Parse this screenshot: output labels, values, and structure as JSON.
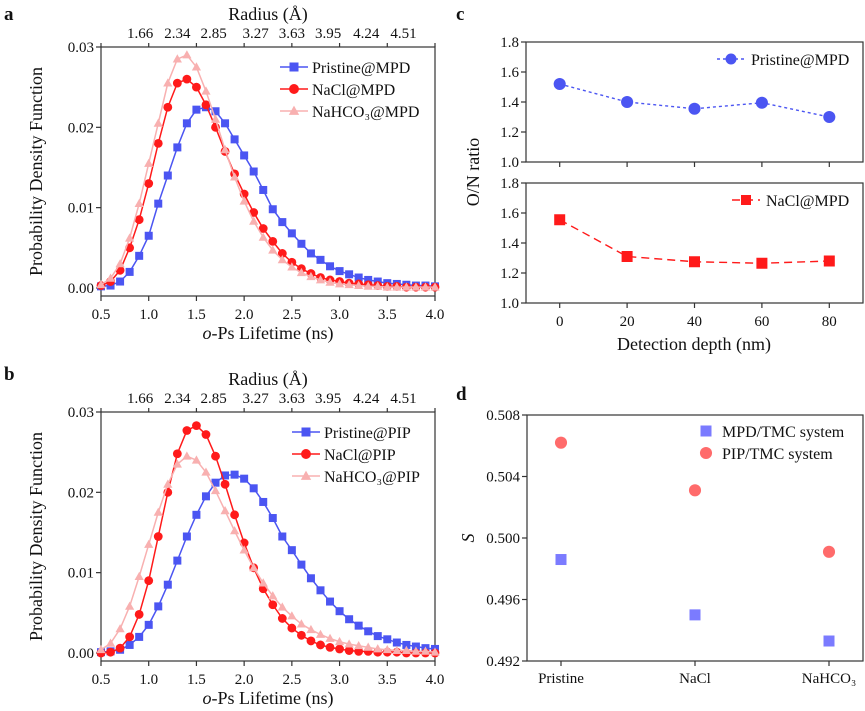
{
  "panel_letters": {
    "a": "a",
    "b": "b",
    "c": "c",
    "d": "d"
  },
  "chart_data": [
    {
      "panel": "a",
      "type": "line",
      "xlabel": "o-Ps Lifetime (ns)",
      "ylabel": "Probability Density Function",
      "xlim": [
        0.5,
        4.0
      ],
      "ylim": [
        -0.001,
        0.03
      ],
      "xticks": [
        "0.5",
        "1.0",
        "1.5",
        "2.0",
        "2.5",
        "3.0",
        "3.5",
        "4.0"
      ],
      "yticks": [
        "0.00",
        "0.01",
        "0.02",
        "0.03"
      ],
      "top_axis": {
        "label": "Radius (Å)",
        "ticks": [
          {
            "label": "1.66",
            "at": 0.91
          },
          {
            "label": "2.34",
            "at": 1.3
          },
          {
            "label": "2.85",
            "at": 1.68
          },
          {
            "label": "3.27",
            "at": 2.12
          },
          {
            "label": "3.63",
            "at": 2.5
          },
          {
            "label": "3.95",
            "at": 2.88
          },
          {
            "label": "4.24",
            "at": 3.28
          },
          {
            "label": "4.51",
            "at": 3.67
          }
        ]
      },
      "legend_position": "top-right",
      "x": [
        0.5,
        0.6,
        0.7,
        0.8,
        0.9,
        1.0,
        1.1,
        1.2,
        1.3,
        1.4,
        1.5,
        1.6,
        1.7,
        1.8,
        1.9,
        2.0,
        2.1,
        2.2,
        2.3,
        2.4,
        2.5,
        2.6,
        2.7,
        2.8,
        2.9,
        3.0,
        3.1,
        3.2,
        3.3,
        3.4,
        3.5,
        3.6,
        3.7,
        3.8,
        3.9,
        4.0
      ],
      "series": [
        {
          "name": "Pristine@MPD",
          "color": "#4b55f2",
          "marker": "square",
          "values": [
            0.0002,
            0.0003,
            0.0008,
            0.002,
            0.004,
            0.0065,
            0.0105,
            0.014,
            0.0175,
            0.0205,
            0.0222,
            0.0225,
            0.022,
            0.0205,
            0.0185,
            0.0165,
            0.0145,
            0.0122,
            0.0098,
            0.0082,
            0.0068,
            0.0055,
            0.0043,
            0.0035,
            0.0027,
            0.0021,
            0.0017,
            0.0013,
            0.001,
            0.0008,
            0.0006,
            0.0005,
            0.0004,
            0.0003,
            0.0003,
            0.0002
          ]
        },
        {
          "name": "NaCl@MPD",
          "color": "#ff1a1a",
          "marker": "circle",
          "values": [
            0.0003,
            0.0008,
            0.0022,
            0.005,
            0.0085,
            0.013,
            0.018,
            0.0225,
            0.0255,
            0.026,
            0.025,
            0.0228,
            0.02,
            0.017,
            0.0142,
            0.0117,
            0.0094,
            0.0074,
            0.0058,
            0.0043,
            0.0032,
            0.0024,
            0.0018,
            0.0013,
            0.001,
            0.0008,
            0.0006,
            0.0005,
            0.0004,
            0.0003,
            0.0002,
            0.0002,
            0.0001,
            0.0001,
            0.0001,
            0.0001
          ]
        },
        {
          "name": "NaHCO₃@MPD",
          "color": "#f8b0b0",
          "marker": "triangle",
          "values": [
            0.0004,
            0.0012,
            0.003,
            0.0062,
            0.0105,
            0.0155,
            0.0205,
            0.0255,
            0.0285,
            0.029,
            0.0275,
            0.0245,
            0.021,
            0.0172,
            0.0138,
            0.0108,
            0.0083,
            0.0063,
            0.0047,
            0.0035,
            0.0026,
            0.0019,
            0.0014,
            0.001,
            0.0007,
            0.0005,
            0.0004,
            0.0003,
            0.0002,
            0.0002,
            0.0001,
            0.0001,
            0.0001,
            0.0001,
            0.0001,
            0.0001
          ]
        }
      ]
    },
    {
      "panel": "b",
      "type": "line",
      "xlabel": "o-Ps Lifetime (ns)",
      "ylabel": "Probability Density Function",
      "xlim": [
        0.5,
        4.0
      ],
      "ylim": [
        -0.001,
        0.03
      ],
      "xticks": [
        "0.5",
        "1.0",
        "1.5",
        "2.0",
        "2.5",
        "3.0",
        "3.5",
        "4.0"
      ],
      "yticks": [
        "0.00",
        "0.01",
        "0.02",
        "0.03"
      ],
      "top_axis": {
        "label": "Radius (Å)",
        "ticks": [
          {
            "label": "1.66",
            "at": 0.91
          },
          {
            "label": "2.34",
            "at": 1.3
          },
          {
            "label": "2.85",
            "at": 1.68
          },
          {
            "label": "3.27",
            "at": 2.12
          },
          {
            "label": "3.63",
            "at": 2.5
          },
          {
            "label": "3.95",
            "at": 2.88
          },
          {
            "label": "4.24",
            "at": 3.28
          },
          {
            "label": "4.51",
            "at": 3.67
          }
        ]
      },
      "legend_position": "top-right",
      "x": [
        0.5,
        0.6,
        0.7,
        0.8,
        0.9,
        1.0,
        1.1,
        1.2,
        1.3,
        1.4,
        1.5,
        1.6,
        1.7,
        1.8,
        1.9,
        2.0,
        2.1,
        2.2,
        2.3,
        2.4,
        2.5,
        2.6,
        2.7,
        2.8,
        2.9,
        3.0,
        3.1,
        3.2,
        3.3,
        3.4,
        3.5,
        3.6,
        3.7,
        3.8,
        3.9,
        4.0
      ],
      "series": [
        {
          "name": "Pristine@PIP",
          "color": "#4b55f2",
          "marker": "square",
          "values": [
            0.0001,
            0.0002,
            0.0004,
            0.001,
            0.002,
            0.0035,
            0.0058,
            0.0085,
            0.0115,
            0.0145,
            0.0172,
            0.0195,
            0.0212,
            0.0221,
            0.0222,
            0.0217,
            0.0205,
            0.0188,
            0.0168,
            0.0145,
            0.0128,
            0.011,
            0.0093,
            0.0078,
            0.0064,
            0.0052,
            0.0042,
            0.0034,
            0.0027,
            0.0021,
            0.0017,
            0.0013,
            0.001,
            0.0008,
            0.0006,
            0.0005
          ]
        },
        {
          "name": "NaCl@PIP",
          "color": "#ff1a1a",
          "marker": "circle",
          "values": [
            0.0,
            0.0001,
            0.0006,
            0.002,
            0.0048,
            0.009,
            0.0145,
            0.02,
            0.0248,
            0.0277,
            0.0283,
            0.0272,
            0.0245,
            0.021,
            0.0172,
            0.0137,
            0.0106,
            0.008,
            0.006,
            0.0043,
            0.0031,
            0.0022,
            0.0015,
            0.001,
            0.0007,
            0.0005,
            0.0003,
            0.0002,
            0.0002,
            0.0001,
            0.0001,
            0.0001,
            0.0,
            0.0,
            0.0,
            0.0
          ]
        },
        {
          "name": "NaHCO₃@PIP",
          "color": "#f8b0b0",
          "marker": "triangle",
          "values": [
            0.0004,
            0.0012,
            0.003,
            0.0058,
            0.0095,
            0.0135,
            0.0175,
            0.021,
            0.0235,
            0.0245,
            0.024,
            0.0225,
            0.0202,
            0.0177,
            0.0152,
            0.0128,
            0.0106,
            0.0087,
            0.0071,
            0.0057,
            0.0046,
            0.0036,
            0.0029,
            0.0023,
            0.0018,
            0.0014,
            0.0011,
            0.0009,
            0.0007,
            0.0005,
            0.0004,
            0.0003,
            0.0003,
            0.0002,
            0.0002,
            0.0001
          ]
        }
      ]
    },
    {
      "panel": "c",
      "type": "line",
      "xlabel": "Detection depth (nm)",
      "ylabel": "O/N ratio",
      "xlim": [
        -10,
        90
      ],
      "xticks": [
        "0",
        "20",
        "40",
        "60",
        "80"
      ],
      "x": [
        0,
        20,
        40,
        60,
        80
      ],
      "subplots": [
        {
          "ylim": [
            1.0,
            1.8
          ],
          "yticks": [
            "1.0",
            "1.2",
            "1.4",
            "1.6",
            "1.8"
          ],
          "legend_position": "top-right",
          "series": [
            {
              "name": "Pristine@MPD",
              "color": "#4b55f2",
              "marker": "circle",
              "line": "dotted",
              "values": [
                1.52,
                1.4,
                1.355,
                1.395,
                1.3
              ]
            }
          ]
        },
        {
          "ylim": [
            1.0,
            1.8
          ],
          "yticks": [
            "1.0",
            "1.2",
            "1.4",
            "1.6",
            "1.8"
          ],
          "legend_position": "top-right",
          "series": [
            {
              "name": "NaCl@MPD",
              "color": "#ff1a1a",
              "marker": "square",
              "line": "dashed",
              "values": [
                1.555,
                1.31,
                1.275,
                1.265,
                1.28
              ]
            }
          ]
        }
      ]
    },
    {
      "panel": "d",
      "type": "scatter",
      "xlabel": "",
      "ylabel": "S",
      "categories": [
        "Pristine",
        "NaCl",
        "NaHCO₃"
      ],
      "ylim": [
        0.492,
        0.508
      ],
      "yticks": [
        "0.492",
        "0.496",
        "0.500",
        "0.504",
        "0.508"
      ],
      "legend_position": "top-right",
      "series": [
        {
          "name": "MPD/TMC system",
          "color": "#7b7bff",
          "marker": "square",
          "values": [
            0.4986,
            0.495,
            0.4933
          ]
        },
        {
          "name": "PIP/TMC system",
          "color": "#ff6b6b",
          "marker": "circle",
          "values": [
            0.5062,
            0.5031,
            0.4991
          ]
        }
      ]
    }
  ]
}
